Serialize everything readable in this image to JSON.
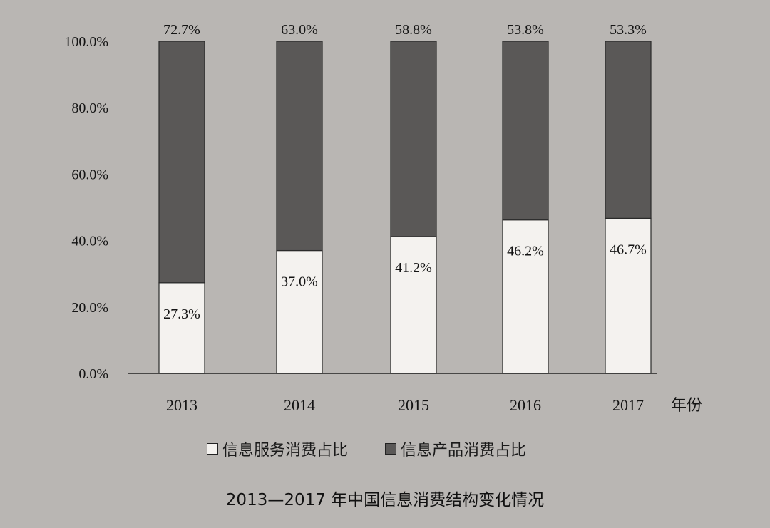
{
  "colors": {
    "background": "#b9b6b3",
    "service": "#f4f2ef",
    "product": "#5a5857",
    "axis": "#222222"
  },
  "chart_data": {
    "type": "bar",
    "stacked": true,
    "title": "2013—2017 年中国信息消费结构变化情况",
    "xlabel": "年份",
    "ylabel": "",
    "ylim": [
      0,
      100
    ],
    "yticks": [
      "0.0%",
      "20.0%",
      "40.0%",
      "60.0%",
      "80.0%",
      "100.0%"
    ],
    "categories": [
      "2013",
      "2014",
      "2015",
      "2016",
      "2017"
    ],
    "series": [
      {
        "name": "信息服务消费占比",
        "values": [
          27.3,
          37.0,
          41.2,
          46.2,
          46.7
        ],
        "labels": [
          "27.3%",
          "37.0%",
          "41.2%",
          "46.2%",
          "46.7%"
        ]
      },
      {
        "name": "信息产品消费占比",
        "values": [
          72.7,
          63.0,
          58.8,
          53.8,
          53.3
        ],
        "labels": [
          "72.7%",
          "63.0%",
          "58.8%",
          "53.8%",
          "53.3%"
        ]
      }
    ],
    "legend": {
      "position": "bottom"
    },
    "grid": false
  }
}
